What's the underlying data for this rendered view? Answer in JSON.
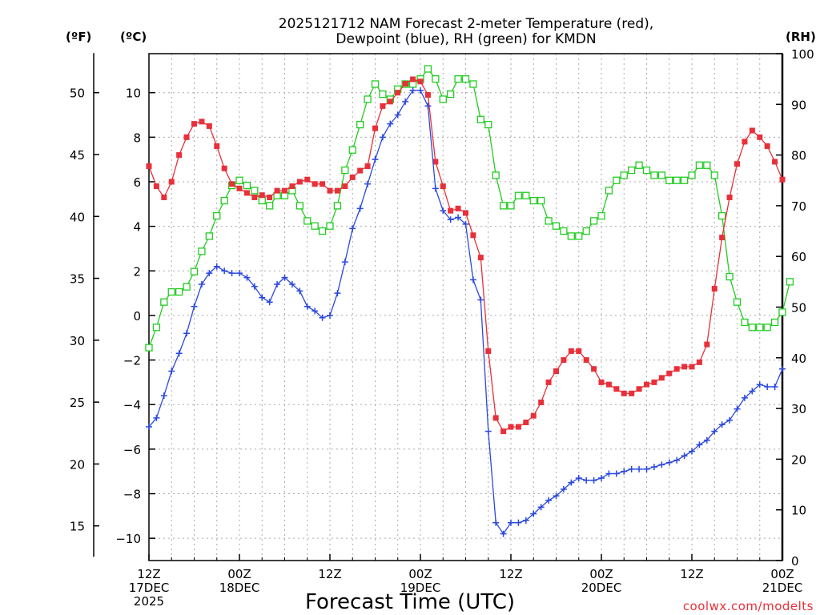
{
  "chart_data": {
    "type": "line",
    "title_line1": "2025121712 NAM Forecast 2-meter Temperature (red),",
    "title_line2": "Dewpoint (blue), RH (green) for KMDN",
    "xlabel": "Forecast Time (UTC)",
    "credit": "coolwx.com/modelts",
    "units": {
      "fahrenheit": "(ºF)",
      "celsius": "(ºC)",
      "rh": "(RH)"
    },
    "x_range_hours": [
      0,
      84
    ],
    "celsius_range": [
      -11,
      11.75
    ],
    "rh_range": [
      0,
      100
    ],
    "grid": true,
    "x_ticks": [
      {
        "hour": 0,
        "lines": [
          "12Z",
          "17DEC",
          "2025"
        ]
      },
      {
        "hour": 12,
        "lines": [
          "00Z",
          "18DEC"
        ]
      },
      {
        "hour": 24,
        "lines": [
          "12Z"
        ]
      },
      {
        "hour": 36,
        "lines": [
          "00Z",
          "19DEC"
        ]
      },
      {
        "hour": 48,
        "lines": [
          "12Z"
        ]
      },
      {
        "hour": 60,
        "lines": [
          "00Z",
          "20DEC"
        ]
      },
      {
        "hour": 72,
        "lines": [
          "12Z"
        ]
      },
      {
        "hour": 84,
        "lines": [
          "00Z",
          "21DEC"
        ]
      }
    ],
    "celsius_ticks": [
      -10,
      -8,
      -6,
      -4,
      -2,
      0,
      2,
      4,
      6,
      8,
      10
    ],
    "fahrenheit_ticks": [
      15,
      20,
      25,
      30,
      35,
      40,
      45,
      50
    ],
    "rh_ticks": [
      0,
      10,
      20,
      30,
      40,
      50,
      60,
      70,
      80,
      90,
      100
    ],
    "series": [
      {
        "name": "Temperature",
        "color": "#e8303a",
        "marker": "filled-square",
        "axis": "celsius",
        "values": [
          6.7,
          5.8,
          5.3,
          6.0,
          7.2,
          8.0,
          8.6,
          8.7,
          8.5,
          7.6,
          6.6,
          5.9,
          5.7,
          5.5,
          5.3,
          5.4,
          5.3,
          5.6,
          5.6,
          5.8,
          6.0,
          6.1,
          5.9,
          5.9,
          5.6,
          5.6,
          5.8,
          6.2,
          6.5,
          6.7,
          8.4,
          9.4,
          9.6,
          10.0,
          10.4,
          10.6,
          10.5,
          9.9,
          6.9,
          5.8,
          4.7,
          4.8,
          4.6,
          3.6,
          2.6,
          -1.6,
          -4.6,
          -5.2,
          -5.0,
          -5.0,
          -4.8,
          -4.5,
          -3.9,
          -3.0,
          -2.5,
          -2.0,
          -1.6,
          -1.6,
          -2.0,
          -2.4,
          -3.0,
          -3.1,
          -3.3,
          -3.5,
          -3.5,
          -3.3,
          -3.1,
          -3.0,
          -2.8,
          -2.6,
          -2.4,
          -2.3,
          -2.3,
          -2.1,
          -1.3,
          1.2,
          3.5,
          5.3,
          6.8,
          7.8,
          8.3,
          8.0,
          7.6,
          6.9,
          6.1
        ]
      },
      {
        "name": "Dewpoint",
        "color": "#2a48e0",
        "marker": "plus",
        "axis": "celsius",
        "values": [
          -5.0,
          -4.6,
          -3.6,
          -2.5,
          -1.7,
          -0.8,
          0.4,
          1.4,
          1.9,
          2.2,
          2.0,
          1.9,
          1.9,
          1.7,
          1.3,
          0.8,
          0.6,
          1.4,
          1.7,
          1.4,
          1.1,
          0.4,
          0.2,
          -0.1,
          0.0,
          1.0,
          2.4,
          3.9,
          4.8,
          5.9,
          7.0,
          8.0,
          8.6,
          9.0,
          9.6,
          10.1,
          10.1,
          9.4,
          5.7,
          4.7,
          4.3,
          4.4,
          4.1,
          1.6,
          0.7,
          -5.2,
          -9.3,
          -9.8,
          -9.3,
          -9.3,
          -9.2,
          -8.9,
          -8.6,
          -8.3,
          -8.1,
          -7.8,
          -7.5,
          -7.3,
          -7.4,
          -7.4,
          -7.3,
          -7.1,
          -7.1,
          -7.0,
          -6.9,
          -6.9,
          -6.9,
          -6.8,
          -6.7,
          -6.6,
          -6.5,
          -6.3,
          -6.1,
          -5.8,
          -5.6,
          -5.2,
          -4.9,
          -4.7,
          -4.2,
          -3.7,
          -3.4,
          -3.1,
          -3.2,
          -3.2,
          -2.4
        ]
      },
      {
        "name": "RH",
        "color": "#22cc22",
        "marker": "open-square",
        "axis": "rh",
        "values": [
          42,
          46,
          51,
          53,
          53,
          54,
          57,
          61,
          64,
          68,
          71,
          74,
          75,
          74,
          73,
          71,
          70,
          72,
          72,
          73,
          70,
          67,
          66,
          65,
          66,
          70,
          77,
          81,
          86,
          91,
          94,
          92,
          91,
          93,
          94,
          94,
          95,
          97,
          95,
          91,
          92,
          95,
          95,
          94,
          87,
          86,
          76,
          70,
          70,
          72,
          72,
          71,
          71,
          67,
          66,
          65,
          64,
          64,
          65,
          67,
          68,
          73,
          75,
          76,
          77,
          78,
          77,
          76,
          76,
          75,
          75,
          75,
          76,
          78,
          78,
          76,
          68,
          56,
          51,
          47,
          46,
          46,
          46,
          47,
          49,
          55
        ]
      }
    ]
  }
}
